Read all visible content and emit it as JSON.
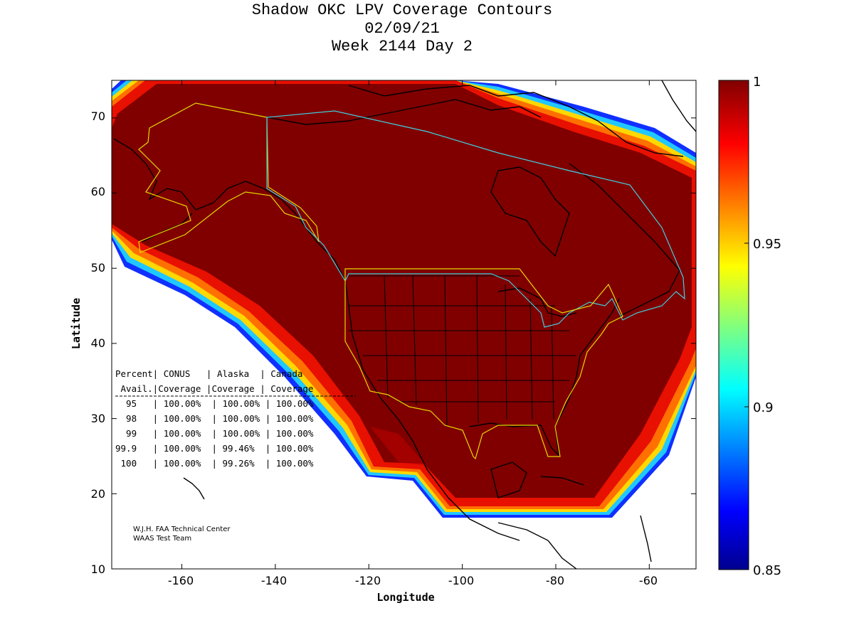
{
  "title": {
    "line1": "Shadow OKC LPV Coverage Contours",
    "line2": "02/09/21",
    "line3": "Week 2144 Day 2"
  },
  "axes": {
    "xlabel": "Longitude",
    "ylabel": "Latitude",
    "xticks": [
      "-160",
      "-140",
      "-120",
      "-100",
      "-80",
      "-60"
    ],
    "yticks": [
      "70",
      "60",
      "50",
      "40",
      "30",
      "20",
      "10"
    ],
    "xlim": [
      -175,
      -50
    ],
    "ylim": [
      10,
      75
    ]
  },
  "colorbar": {
    "ticks": [
      "1",
      "0.95",
      "0.9",
      "0.85"
    ],
    "range": [
      0.85,
      1
    ],
    "colormap": "jet"
  },
  "coverage_table": {
    "header1": "Percent| CONUS   | Alaska  | Canada",
    "header2": " Avail.|Coverage |Coverage | Coverage",
    "rows": [
      "  95   | 100.00%  | 100.00% | 100.00%",
      "  98   | 100.00%  | 100.00% | 100.00%",
      "  99   | 100.00%  | 100.00% | 100.00%",
      "99.9   | 100.00%  | 99.46%  | 100.00%",
      " 100   | 100.00%  | 99.26%  | 100.00%"
    ]
  },
  "credits": {
    "line1": "W.J.H. FAA Technical Center",
    "line2": "WAAS Test Team"
  },
  "colors": {
    "full_coverage": "#800000",
    "alaska_boundary": "#e6d800",
    "canada_boundary": "#40d0e0",
    "conus_boundary": "#e6d800"
  }
}
